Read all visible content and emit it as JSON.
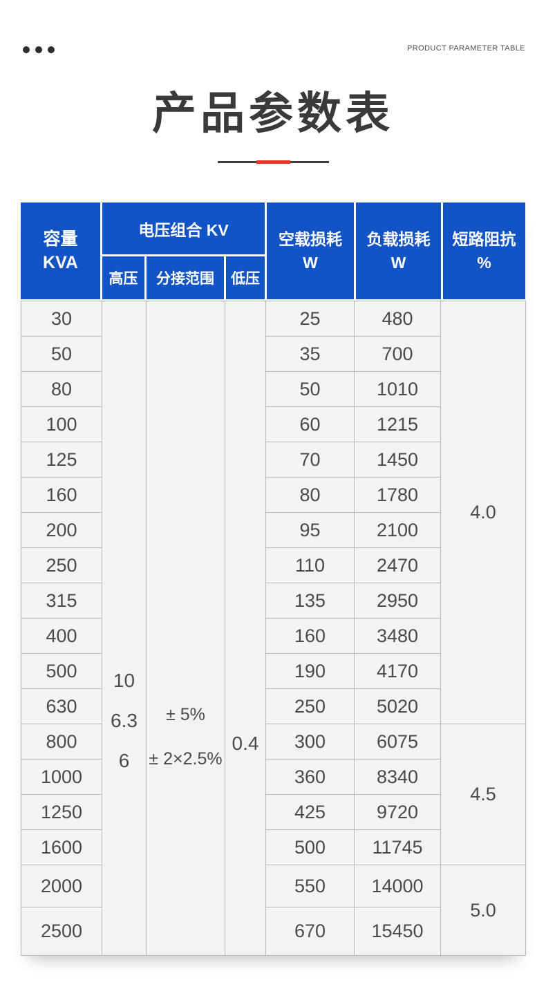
{
  "header": {
    "caption": "PRODUCT PARAMETER TABLE",
    "title": "产品参数表"
  },
  "table": {
    "head": {
      "capacity_line1": "容量",
      "capacity_line2": "KVA",
      "voltage_group": "电压组合 KV",
      "high": "高压",
      "tap": "分接范围",
      "low": "低压",
      "no_load_line1": "空载损耗",
      "no_load_line2": "W",
      "load_line1": "负载损耗",
      "load_line2": "W",
      "impedance_line1": "短路阻抗",
      "impedance_line2": "%"
    },
    "voltage": {
      "high_values": [
        "10",
        "6.3",
        "6"
      ],
      "tap_values": [
        "± 5%",
        "± 2×2.5%"
      ],
      "low_value": "0.4"
    },
    "rows": [
      {
        "capacity": "30",
        "no_load": "25",
        "load": "480"
      },
      {
        "capacity": "50",
        "no_load": "35",
        "load": "700"
      },
      {
        "capacity": "80",
        "no_load": "50",
        "load": "1010"
      },
      {
        "capacity": "100",
        "no_load": "60",
        "load": "1215"
      },
      {
        "capacity": "125",
        "no_load": "70",
        "load": "1450"
      },
      {
        "capacity": "160",
        "no_load": "80",
        "load": "1780"
      },
      {
        "capacity": "200",
        "no_load": "95",
        "load": "2100"
      },
      {
        "capacity": "250",
        "no_load": "110",
        "load": "2470"
      },
      {
        "capacity": "315",
        "no_load": "135",
        "load": "2950"
      },
      {
        "capacity": "400",
        "no_load": "160",
        "load": "3480"
      },
      {
        "capacity": "500",
        "no_load": "190",
        "load": "4170"
      },
      {
        "capacity": "630",
        "no_load": "250",
        "load": "5020"
      },
      {
        "capacity": "800",
        "no_load": "300",
        "load": "6075"
      },
      {
        "capacity": "1000",
        "no_load": "360",
        "load": "8340"
      },
      {
        "capacity": "1250",
        "no_load": "425",
        "load": "9720"
      },
      {
        "capacity": "1600",
        "no_load": "500",
        "load": "11745"
      },
      {
        "capacity": "2000",
        "no_load": "550",
        "load": "14000"
      },
      {
        "capacity": "2500",
        "no_load": "670",
        "load": "15450"
      }
    ],
    "impedance_groups": [
      {
        "value": "4.0",
        "row_start": 0,
        "row_span": 12
      },
      {
        "value": "4.5",
        "row_start": 12,
        "row_span": 4
      },
      {
        "value": "5.0",
        "row_start": 16,
        "row_span": 2
      }
    ]
  },
  "colors": {
    "header_blue": "#1253c6",
    "accent_red": "#e8392b",
    "grid_gray": "#b7b7b7",
    "cell_bg": "#f3f3f3"
  }
}
